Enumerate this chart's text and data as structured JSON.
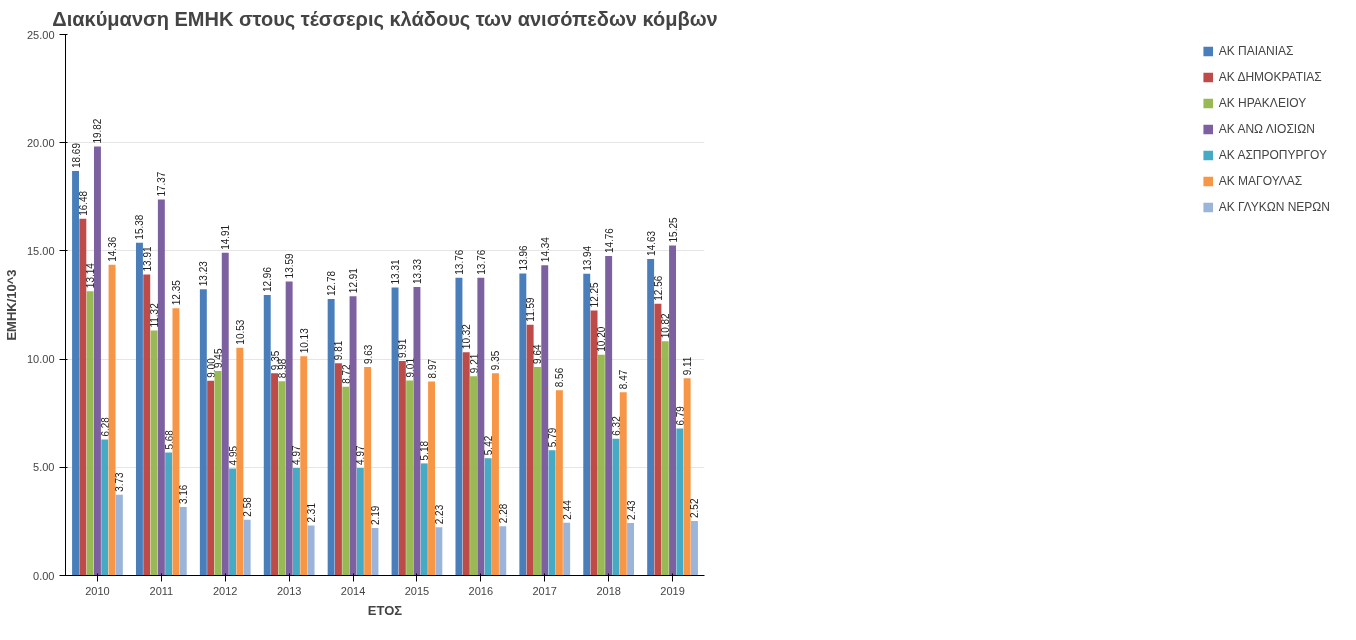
{
  "chart_data": {
    "type": "bar",
    "title": "Διακύμανση ΕΜΗΚ στους τέσσερις κλάδους των ανισόπεδων κόμβων",
    "xlabel": "ΕΤΟΣ",
    "ylabel": "ΕΜΗΚ/10^3",
    "categories": [
      "2010",
      "2011",
      "2012",
      "2013",
      "2014",
      "2015",
      "2016",
      "2017",
      "2018",
      "2019"
    ],
    "ylim": [
      0,
      25
    ],
    "yticks": [
      {
        "value": 0,
        "label": "0.00"
      },
      {
        "value": 5,
        "label": "5.00"
      },
      {
        "value": 10,
        "label": "10.00"
      },
      {
        "value": 15,
        "label": "15.00"
      },
      {
        "value": 20,
        "label": "20.00"
      },
      {
        "value": 25,
        "label": "25.00"
      }
    ],
    "grid": "y",
    "legend": "right",
    "series": [
      {
        "name": "ΑΚ ΠΑΙΑΝΙΑΣ",
        "color": "#4a7ebb",
        "values": [
          18.69,
          15.38,
          13.23,
          12.96,
          12.78,
          13.31,
          13.76,
          13.96,
          13.94,
          14.63
        ],
        "value_labels": [
          "18.69",
          "15.38",
          "13.23",
          "12.96",
          "12.78",
          "13.31",
          "13.76",
          "13.96",
          "13.94",
          "14.63"
        ]
      },
      {
        "name": "ΑΚ ΔΗΜΟΚΡΑΤΙΑΣ",
        "color": "#be4b48",
        "values": [
          16.48,
          13.91,
          9.0,
          9.35,
          9.81,
          9.91,
          10.32,
          11.59,
          12.25,
          12.56
        ],
        "value_labels": [
          "16.48",
          "13.91",
          "9.00",
          "9.35",
          "9.81",
          "9.91",
          "10.32",
          "11.59",
          "12.25",
          "12.56"
        ]
      },
      {
        "name": "ΑΚ ΗΡΑΚΛΕΙΟΥ",
        "color": "#98b954",
        "values": [
          13.14,
          11.32,
          9.45,
          8.98,
          8.72,
          9.01,
          9.21,
          9.64,
          10.2,
          10.82
        ],
        "value_labels": [
          "13.14",
          "11.32",
          "9.45",
          "8.98",
          "8.72",
          "9.01",
          "9.21",
          "9.64",
          "10.20",
          "10.82"
        ]
      },
      {
        "name": "ΑΚ ΑΝΩ ΛΙΟΣΙΩΝ",
        "color": "#7d60a0",
        "values": [
          19.82,
          17.37,
          14.91,
          13.59,
          12.91,
          13.33,
          13.76,
          14.34,
          14.76,
          15.25
        ],
        "value_labels": [
          "19.82",
          "17.37",
          "14.91",
          "13.59",
          "12.91",
          "13.33",
          "13.76",
          "14.34",
          "14.76",
          "15.25"
        ]
      },
      {
        "name": "ΑΚ ΑΣΠΡΟΠΥΡΓΟΥ",
        "color": "#46aac5",
        "values": [
          6.28,
          5.68,
          4.95,
          4.97,
          4.97,
          5.18,
          5.42,
          5.79,
          6.32,
          6.79
        ],
        "value_labels": [
          "6.28",
          "5.68",
          "4.95",
          "4.97",
          "4.97",
          "5.18",
          "5.42",
          "5.79",
          "6.32",
          "6.79"
        ]
      },
      {
        "name": "ΑΚ ΜΑΓΟΥΛΑΣ",
        "color": "#f79646",
        "values": [
          14.36,
          12.35,
          10.53,
          10.13,
          9.63,
          8.97,
          9.35,
          8.56,
          8.47,
          9.11
        ],
        "value_labels": [
          "14.36",
          "12.35",
          "10.53",
          "10.13",
          "9.63",
          "8.97",
          "9.35",
          "8.56",
          "8.47",
          "9.11"
        ]
      },
      {
        "name": "ΑΚ ΓΛΥΚΩΝ ΝΕΡΩΝ",
        "color": "#9bb4da",
        "values": [
          3.73,
          3.16,
          2.58,
          2.31,
          2.19,
          2.23,
          2.28,
          2.44,
          2.43,
          2.52
        ],
        "value_labels": [
          "3.73",
          "3.16",
          "2.58",
          "2.31",
          "2.19",
          "2.23",
          "2.28",
          "2.44",
          "2.43",
          "2.52"
        ]
      }
    ]
  }
}
